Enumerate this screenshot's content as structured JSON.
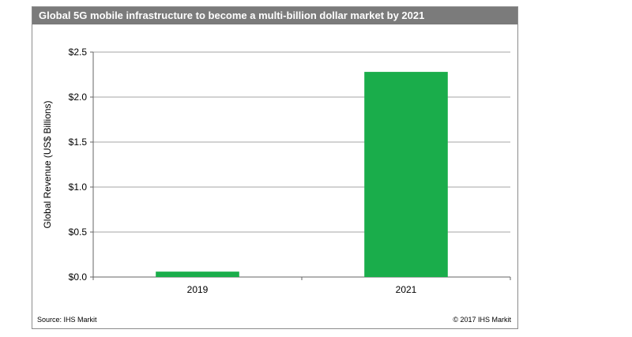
{
  "title": "Global 5G mobile infrastructure to become a multi-billion dollar market by 2021",
  "footer": {
    "source": "Source: IHS Markit",
    "copyright": "© 2017 IHS Markit"
  },
  "colors": {
    "bar": "#1aad4b",
    "title_bg": "#7b7b7b",
    "grid": "#a6a6a6"
  },
  "chart_data": {
    "type": "bar",
    "categories": [
      "2019",
      "2021"
    ],
    "values": [
      0.06,
      2.28
    ],
    "ylabel": "Global Revenue (US$ Billions)",
    "xlabel": "",
    "ylim": [
      0,
      2.5
    ],
    "yticks": [
      0,
      0.5,
      1.0,
      1.5,
      2.0,
      2.5
    ],
    "ytick_labels": [
      "$0.0",
      "$0.5",
      "$1.0",
      "$1.5",
      "$2.0",
      "$2.5"
    ],
    "grid": true
  }
}
